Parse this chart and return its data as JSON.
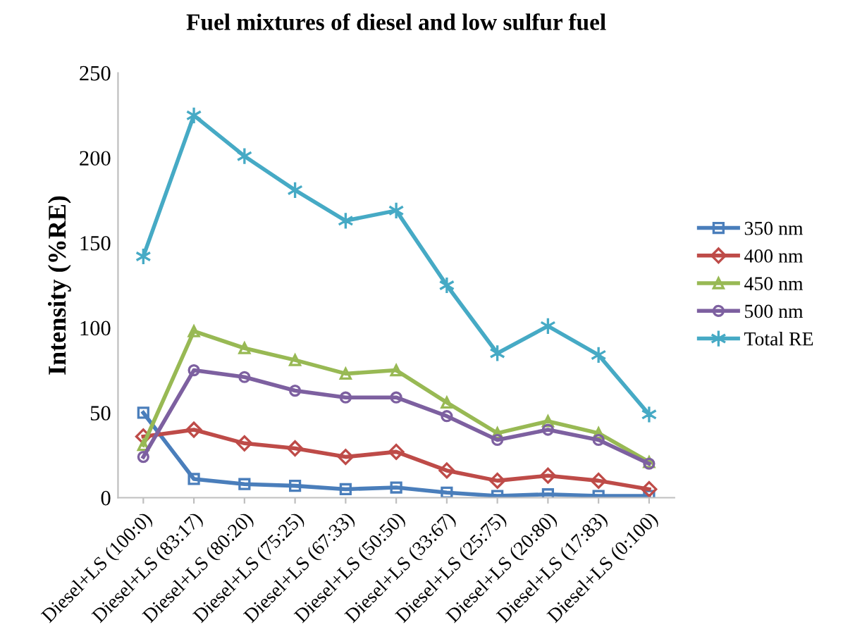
{
  "chart_data": {
    "type": "line",
    "title": "Fuel mixtures of diesel and low sulfur fuel",
    "ylabel": "Intensity (%RE)",
    "categories": [
      "Diesel+LS (100:0)",
      "Diesel+LS (83:17)",
      "Diesel+LS (80:20)",
      "Diesel+LS (75:25)",
      "Diesel+LS (67:33)",
      "Diesel+LS (50:50)",
      "Diesel+LS (33:67)",
      "Diesel+LS (25:75)",
      "Diesel+LS (20:80)",
      "Diesel+LS (17:83)",
      "Diesel+LS (0:100)"
    ],
    "series": [
      {
        "name": "350 nm",
        "color": "#4a7ebb",
        "marker": "square",
        "values": [
          50,
          11,
          8,
          7,
          5,
          6,
          3,
          1,
          2,
          1,
          1
        ]
      },
      {
        "name": "400 nm",
        "color": "#be4b48",
        "marker": "diamond",
        "values": [
          36,
          40,
          32,
          29,
          24,
          27,
          16,
          10,
          13,
          10,
          5
        ]
      },
      {
        "name": "450 nm",
        "color": "#98b954",
        "marker": "triangle",
        "values": [
          31,
          98,
          88,
          81,
          73,
          75,
          56,
          38,
          45,
          38,
          21
        ]
      },
      {
        "name": "500 nm",
        "color": "#7d60a0",
        "marker": "circle",
        "values": [
          24,
          75,
          71,
          63,
          59,
          59,
          48,
          34,
          40,
          34,
          20
        ]
      },
      {
        "name": "Total RE",
        "color": "#46aac5",
        "marker": "cross",
        "values": [
          142,
          225,
          201,
          181,
          163,
          169,
          125,
          85,
          101,
          84,
          49
        ]
      }
    ],
    "ylim": [
      0,
      250
    ],
    "yticks": [
      0,
      50,
      100,
      150,
      200,
      250
    ],
    "grid": false,
    "legend": "right",
    "line_style": "solid"
  }
}
